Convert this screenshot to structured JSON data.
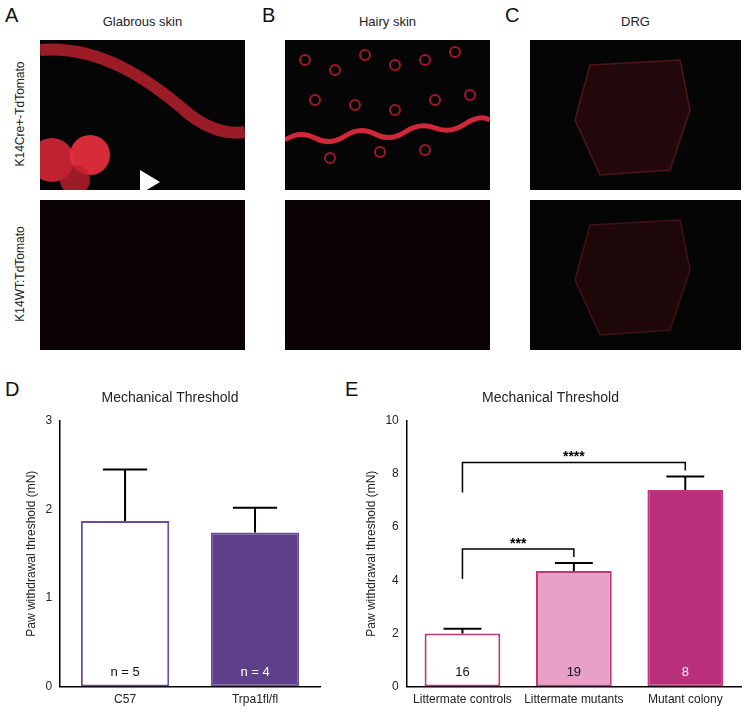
{
  "figure": {
    "image_panels": [
      {
        "letter": "A",
        "title": "Glabrous skin"
      },
      {
        "letter": "B",
        "title": "Hairy skin"
      },
      {
        "letter": "C",
        "title": "DRG"
      }
    ],
    "row_labels": [
      "K14Cre+-TdTomato",
      "K14WT:TdTomato"
    ],
    "chart_letters": [
      "D",
      "E"
    ]
  },
  "chart_data": [
    {
      "type": "bar",
      "title": "Mechanical Threshold",
      "y_label": "Paw withdrawal threshold (mN)",
      "categories": [
        "C57",
        "Trpa1fl/fl"
      ],
      "values": [
        1.87,
        1.74
      ],
      "errors": [
        0.58,
        0.28
      ],
      "annotations": [
        "n = 5",
        "n = 4"
      ],
      "color": "#6b4c9a",
      "colors": [
        "#ffffff",
        "#5e3f8a"
      ],
      "ylim": [
        0,
        3
      ],
      "yticks": [
        0,
        1,
        2,
        3
      ],
      "grid": false
    },
    {
      "type": "bar",
      "title": "Mechanical Threshold",
      "y_label": "Paw withdrawal threshold (mN)",
      "categories": [
        "Littermate controls",
        "Littermate mutants",
        "Mutant colony"
      ],
      "values": [
        2.0,
        4.35,
        7.4
      ],
      "errors": [
        0.18,
        0.3,
        0.5
      ],
      "annotations": [
        "16",
        "19",
        "8"
      ],
      "significance": [
        {
          "from": 0,
          "to": 1,
          "label": "***"
        },
        {
          "from": 0,
          "to": 2,
          "label": "****"
        }
      ],
      "color": "#c2367a",
      "colors": [
        "#ffffff",
        "#e7a1c6",
        "#b82f7a"
      ],
      "ylim": [
        0,
        10
      ],
      "yticks": [
        0,
        2,
        4,
        6,
        8,
        10
      ],
      "grid": false
    }
  ]
}
